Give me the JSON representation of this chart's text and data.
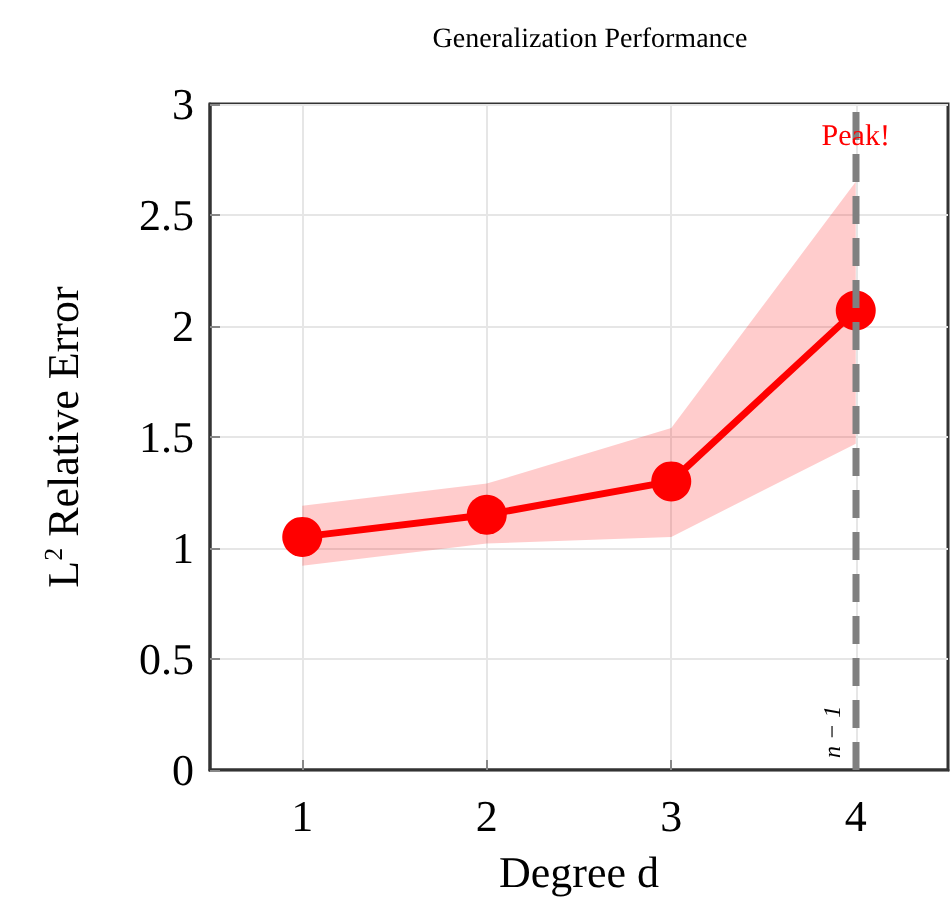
{
  "chart_data": {
    "type": "line",
    "title": "Generalization Performance",
    "xlabel": "Degree d",
    "ylabel": "L$^{2}$ Relative Error",
    "x": [
      1,
      2,
      3,
      4
    ],
    "series": [
      {
        "color": "#ff0000",
        "values": [
          1.05,
          1.15,
          1.3,
          2.07
        ],
        "lower": [
          0.92,
          1.02,
          1.05,
          1.47
        ],
        "upper": [
          1.19,
          1.29,
          1.54,
          2.65
        ]
      }
    ],
    "xlim": [
      0.5,
      4.5
    ],
    "xticks": [
      1,
      2,
      3,
      4
    ],
    "ylim": [
      0,
      3
    ],
    "yticks": [
      0,
      0.5,
      1,
      1.5,
      2,
      2.5,
      3
    ],
    "ref_lines": [
      {
        "axis": "x",
        "value": 4,
        "label": "n − 1",
        "color": "#808080",
        "line_style": "dashed"
      }
    ],
    "annotations": [
      {
        "text": "Peak!",
        "x": 4,
        "y": 2.85
      }
    ],
    "grid": true,
    "marker": "circle",
    "line_style": "solid"
  }
}
